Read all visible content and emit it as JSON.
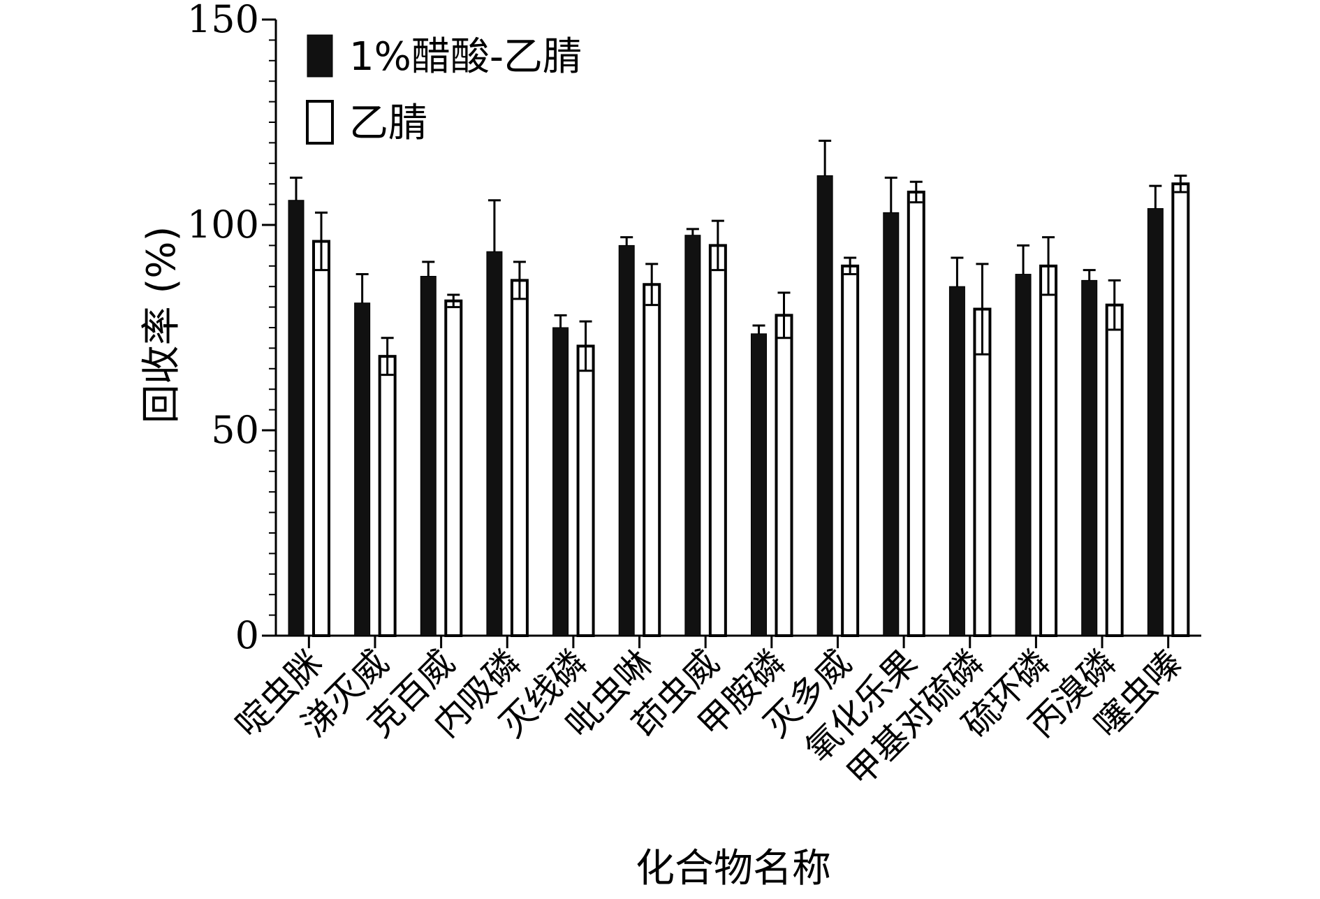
{
  "chart_data": {
    "type": "bar",
    "ylabel": "回收率 (%)",
    "xlabel": "化合物名称",
    "ylim": [
      0,
      150
    ],
    "yticks": [
      0,
      50,
      100,
      150
    ],
    "minor_tick_step": 5,
    "grid": false,
    "legend_placement": "top-left",
    "categories": [
      "啶虫脒",
      "涕灭威",
      "克百威",
      "内吸磷",
      "灭线磷",
      "吡虫啉",
      "茚虫威",
      "甲胺磷",
      "灭多威",
      "氧化乐果",
      "甲基对硫磷",
      "硫环磷",
      "丙溴磷",
      "噻虫嗪"
    ],
    "series": [
      {
        "name": "1%醋酸-乙腈",
        "fill": "#111111",
        "values": [
          106,
          81,
          87.5,
          93.5,
          75,
          95,
          97.5,
          73.5,
          112,
          103,
          85,
          88,
          86.5,
          104
        ],
        "errors": [
          5.5,
          7,
          3.5,
          12.5,
          3,
          2,
          1.5,
          2,
          8.5,
          8.5,
          7,
          7,
          2.5,
          5.5
        ]
      },
      {
        "name": "乙腈",
        "fill": "#ffffff",
        "values": [
          96,
          68,
          81.5,
          86.5,
          70.5,
          85.5,
          95,
          78,
          90,
          108,
          79.5,
          90,
          80.5,
          110
        ],
        "errors": [
          7,
          4.5,
          1.5,
          4.5,
          6,
          5,
          6,
          5.5,
          2,
          2.5,
          11,
          7,
          6,
          2
        ]
      }
    ]
  }
}
